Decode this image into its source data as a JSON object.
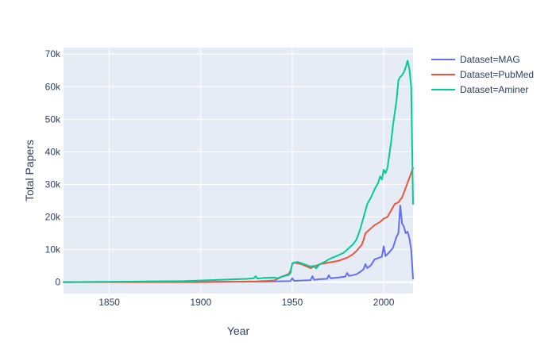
{
  "chart_data": {
    "type": "line",
    "xlabel": "Year",
    "ylabel": "Total Papers",
    "xlim": [
      1825,
      2016
    ],
    "ylim": [
      -3500,
      72000
    ],
    "xticks": [
      1850,
      1900,
      1950,
      2000
    ],
    "xtick_labels": [
      "1850",
      "1900",
      "1950",
      "2000"
    ],
    "yticks": [
      0,
      10000,
      20000,
      30000,
      40000,
      50000,
      60000,
      70000
    ],
    "ytick_labels": [
      "0",
      "10k",
      "20k",
      "30k",
      "40k",
      "50k",
      "60k",
      "70k"
    ],
    "grid": true,
    "legend_position": "top-right",
    "series": [
      {
        "name": "Dataset=MAG",
        "color": "#636efa",
        "x": [
          1825,
          1850,
          1900,
          1930,
          1940,
          1949,
          1950,
          1951,
          1955,
          1960,
          1961,
          1962,
          1965,
          1969,
          1970,
          1971,
          1975,
          1979,
          1980,
          1981,
          1985,
          1988,
          1989,
          1990,
          1991,
          1993,
          1995,
          1998,
          1999,
          2000,
          2001,
          2003,
          2005,
          2007,
          2008,
          2009,
          2010,
          2011,
          2012,
          2013,
          2014,
          2015,
          2016
        ],
        "y": [
          0,
          50,
          100,
          150,
          200,
          300,
          1200,
          400,
          500,
          600,
          1800,
          700,
          900,
          1000,
          2100,
          1200,
          1400,
          1700,
          2800,
          1900,
          2400,
          3500,
          4000,
          5500,
          4300,
          5200,
          7000,
          7600,
          7800,
          11000,
          8000,
          9200,
          10500,
          14000,
          15000,
          23500,
          18000,
          17000,
          15000,
          15500,
          13500,
          10000,
          1000
        ]
      },
      {
        "name": "Dataset=PubMed",
        "color": "#ef553b",
        "x": [
          1825,
          1900,
          1930,
          1940,
          1945,
          1948,
          1949,
          1950,
          1951,
          1955,
          1958,
          1960,
          1963,
          1965,
          1970,
          1975,
          1980,
          1983,
          1985,
          1988,
          1989,
          1990,
          1992,
          1995,
          1998,
          2000,
          2002,
          2004,
          2006,
          2008,
          2010,
          2012,
          2014,
          2016
        ],
        "y": [
          0,
          0,
          200,
          500,
          1800,
          2500,
          3500,
          5500,
          6000,
          5500,
          4800,
          4300,
          5000,
          5500,
          6000,
          6500,
          7500,
          8500,
          9500,
          11500,
          13000,
          15000,
          16000,
          17500,
          18500,
          19500,
          20000,
          22000,
          24000,
          24500,
          26000,
          29000,
          32000,
          35000
        ]
      },
      {
        "name": "Dataset=Aminer",
        "color": "#00cc96",
        "x": [
          1825,
          1850,
          1870,
          1890,
          1900,
          1910,
          1920,
          1925,
          1929,
          1930,
          1931,
          1935,
          1940,
          1942,
          1945,
          1948,
          1949,
          1950,
          1951,
          1953,
          1955,
          1958,
          1960,
          1962,
          1963,
          1965,
          1968,
          1970,
          1972,
          1975,
          1978,
          1980,
          1983,
          1985,
          1987,
          1989,
          1990,
          1991,
          1993,
          1995,
          1997,
          1998,
          1999,
          2000,
          2001,
          2002,
          2003,
          2004,
          2005,
          2006,
          2007,
          2008,
          2009,
          2010,
          2011,
          2012,
          2013,
          2014,
          2015,
          2016
        ],
        "y": [
          0,
          100,
          200,
          300,
          500,
          700,
          900,
          1000,
          1200,
          1800,
          1100,
          1300,
          1400,
          1200,
          1800,
          2200,
          2800,
          5800,
          6000,
          6200,
          5800,
          5200,
          4800,
          5000,
          4200,
          5500,
          6300,
          7000,
          7500,
          8200,
          9000,
          10000,
          11500,
          13000,
          16000,
          20000,
          22000,
          24000,
          26000,
          28500,
          30500,
          32500,
          31500,
          34500,
          33500,
          35000,
          39000,
          43000,
          48000,
          52000,
          56000,
          62000,
          63000,
          63500,
          64500,
          66000,
          68000,
          65500,
          60000,
          24000
        ]
      }
    ]
  }
}
